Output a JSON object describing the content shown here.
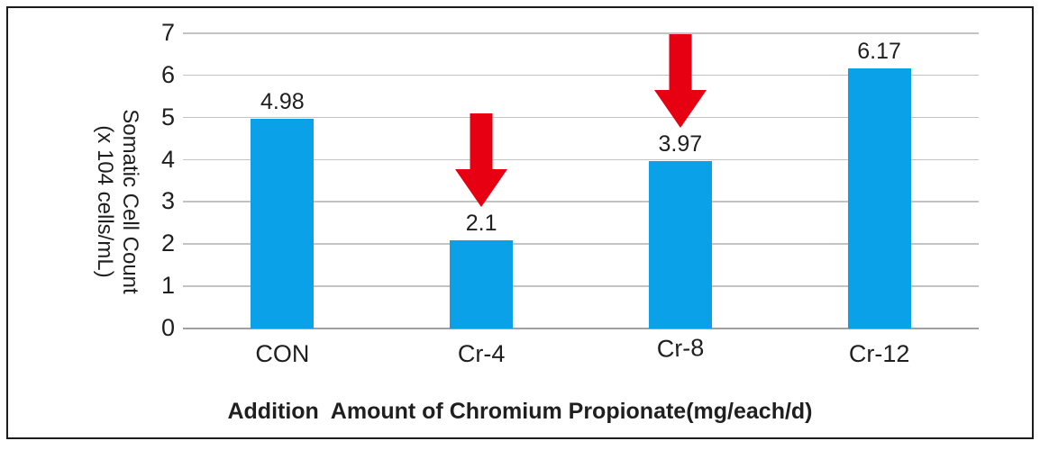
{
  "chart_data": {
    "type": "bar",
    "categories": [
      "CON",
      "Cr-4",
      "Cr-8",
      "Cr-12"
    ],
    "values": [
      4.98,
      2.1,
      3.97,
      6.17
    ],
    "value_labels": [
      "4.98",
      "2.1",
      "3.97",
      "6.17"
    ],
    "arrows": [
      false,
      true,
      true,
      false
    ],
    "xlabel": "Addition  Amount of Chromium Propionate(mg/each/d)",
    "ylabel_line1": "Somatic Cell Count",
    "ylabel_line2": "(x 104 cells/mL)",
    "ylim": [
      0,
      7
    ],
    "yticks": [
      0,
      1,
      2,
      3,
      4,
      5,
      6,
      7
    ],
    "grid": true,
    "legend": "none",
    "bar_color": "#0aa1e8",
    "arrow_color": "#e60012",
    "gridline_color": "#c3c3c3",
    "axis_line_color": "#a0a0a0",
    "frame_color": "#1c1c1c",
    "text_color": "#1f1f1f"
  }
}
